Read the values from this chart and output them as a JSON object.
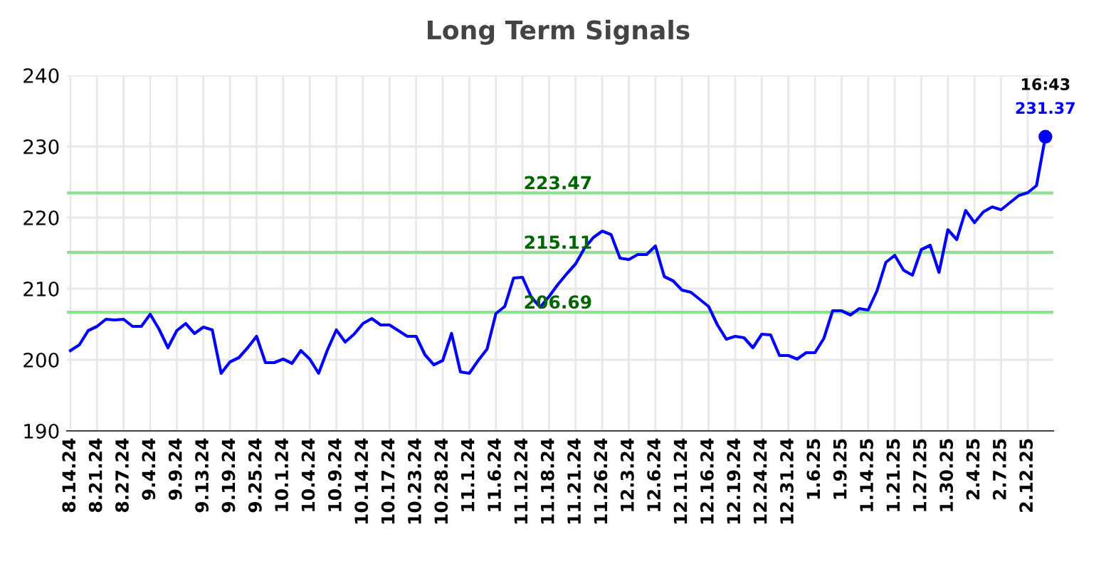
{
  "chart_data": {
    "type": "line",
    "title": "Long Term Signals",
    "categories": [
      "8.14.24",
      null,
      null,
      "8.21.24",
      null,
      null,
      "8.27.24",
      null,
      null,
      "9.4.24",
      null,
      null,
      "9.9.24",
      null,
      null,
      "9.13.24",
      null,
      null,
      "9.19.24",
      null,
      null,
      "9.25.24",
      null,
      null,
      "10.1.24",
      null,
      null,
      "10.4.24",
      null,
      null,
      "10.9.24",
      null,
      null,
      "10.14.24",
      null,
      null,
      "10.17.24",
      null,
      null,
      "10.23.24",
      null,
      null,
      "10.28.24",
      null,
      null,
      "11.1.24",
      null,
      null,
      "11.6.24",
      null,
      null,
      "11.12.24",
      null,
      null,
      "11.18.24",
      null,
      null,
      "11.21.24",
      null,
      null,
      "11.26.24",
      null,
      null,
      "12.3.24",
      null,
      null,
      "12.6.24",
      null,
      null,
      "12.11.24",
      null,
      null,
      "12.16.24",
      null,
      null,
      "12.19.24",
      null,
      null,
      "12.24.24",
      null,
      null,
      "12.31.24",
      null,
      null,
      "1.6.25",
      null,
      null,
      "1.9.25",
      null,
      null,
      "1.14.25",
      null,
      null,
      "1.21.25",
      null,
      null,
      "1.27.25",
      null,
      null,
      "1.30.25",
      null,
      null,
      "2.4.25",
      null,
      null,
      "2.7.25",
      null,
      null,
      "2.12.25",
      null,
      null
    ],
    "series": [
      {
        "color": "#0000ff",
        "values": [
          201.3,
          202.1,
          204.1,
          204.7,
          205.7,
          205.6,
          205.7,
          204.7,
          204.7,
          206.4,
          204.3,
          201.7,
          204.1,
          205.1,
          203.7,
          204.6,
          204.2,
          198.1,
          199.7,
          200.3,
          201.7,
          203.3,
          199.6,
          199.6,
          200.1,
          199.5,
          201.3,
          200.1,
          198.1,
          201.4,
          204.2,
          202.5,
          203.6,
          205.1,
          205.8,
          204.9,
          204.9,
          204.1,
          203.3,
          203.3,
          200.7,
          199.3,
          199.9,
          203.7,
          198.3,
          198.1,
          199.9,
          201.5,
          206.5,
          207.5,
          211.5,
          211.6,
          208.8,
          207.4,
          208.9,
          210.6,
          212.1,
          213.5,
          215.7,
          217.2,
          218.1,
          217.6,
          214.3,
          214.1,
          214.8,
          214.8,
          216.0,
          211.7,
          211.1,
          209.8,
          209.5,
          208.5,
          207.5,
          204.9,
          202.9,
          203.3,
          203.1,
          201.7,
          203.6,
          203.5,
          200.6,
          200.6,
          200.1,
          201.0,
          201.0,
          203.0,
          206.9,
          206.9,
          206.3,
          207.2,
          207.0,
          209.7,
          213.7,
          214.7,
          212.6,
          211.9,
          215.5,
          216.1,
          212.3,
          218.3,
          216.9,
          221.0,
          219.3,
          220.8,
          221.5,
          221.1,
          222.1,
          223.1,
          223.5,
          224.5,
          231.37
        ],
        "value_labels": [
          null,
          null,
          null,
          null,
          null,
          null,
          null,
          null,
          null,
          null,
          null,
          null,
          null,
          null,
          null,
          null,
          null,
          null,
          null,
          null,
          null,
          null,
          null,
          null,
          null,
          null,
          null,
          null,
          null,
          null,
          null,
          null,
          null,
          null,
          null,
          null,
          null,
          null,
          null,
          null,
          null,
          null,
          null,
          null,
          null,
          null,
          null,
          null,
          null,
          null,
          null,
          null,
          null,
          null,
          null,
          null,
          null,
          null,
          null,
          null,
          null,
          null,
          null,
          null,
          null,
          null,
          null,
          null,
          null,
          null,
          null,
          null,
          null,
          null,
          null,
          null,
          null,
          null,
          null,
          null,
          null,
          null,
          null,
          null,
          null,
          null,
          null,
          null,
          null,
          null,
          null,
          null,
          null,
          null,
          null,
          null,
          null,
          null,
          null,
          null,
          null,
          null,
          null,
          null,
          null,
          null,
          null,
          null,
          null,
          null,
          "231.37"
        ]
      }
    ],
    "ylim": [
      190,
      240
    ],
    "yticks": [
      190,
      200,
      210,
      220,
      230,
      240
    ],
    "grid": true,
    "ref_lines": [
      {
        "axis": "y",
        "value": 223.47,
        "label": "223.47",
        "color": "#90e090"
      },
      {
        "axis": "y",
        "value": 215.11,
        "label": "215.11",
        "color": "#90e090"
      },
      {
        "axis": "y",
        "value": 206.69,
        "label": "206.69",
        "color": "#90e090"
      }
    ],
    "annotations": [
      "16:43"
    ]
  }
}
